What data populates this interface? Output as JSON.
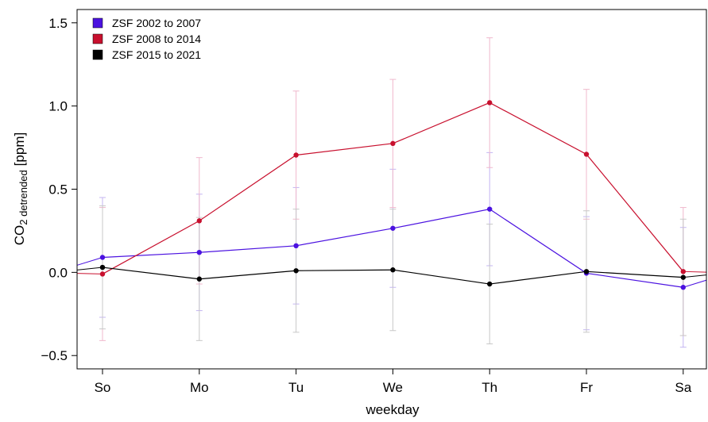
{
  "chart_data": {
    "type": "line",
    "xlabel": "weekday",
    "ylabel": {
      "main": "CO",
      "sub": "2 detrended",
      "unit": "[ppm]"
    },
    "categories": [
      "So",
      "Mo",
      "Tu",
      "We",
      "Th",
      "Fr",
      "Sa"
    ],
    "ylim": [
      -0.58,
      1.58
    ],
    "yticks": [
      {
        "value": -0.5,
        "label": "−0.5"
      },
      {
        "value": 0,
        "label": "0.0"
      },
      0.5,
      {
        "value": 1,
        "label": "1.0"
      },
      1.5
    ],
    "legend": "top-left",
    "series": [
      {
        "name": "ZSF 2002 to 2007",
        "color": "#4b12e0",
        "errcolor": "#c3b4f2",
        "values": [
          0.09,
          0.12,
          0.16,
          0.265,
          0.38,
          -0.005,
          -0.09
        ],
        "errors": [
          0.36,
          0.35,
          0.35,
          0.355,
          0.34,
          0.34,
          0.36
        ]
      },
      {
        "name": "ZSF 2008 to 2014",
        "color": "#c8102e",
        "errcolor": "#f0b8cc",
        "values": [
          -0.01,
          0.31,
          0.705,
          0.775,
          1.02,
          0.71,
          0.005
        ],
        "errors": [
          0.4,
          0.38,
          0.385,
          0.385,
          0.39,
          0.39,
          0.385
        ]
      },
      {
        "name": "ZSF 2015 to 2021",
        "color": "#000000",
        "errcolor": "#c8c8c8",
        "values": [
          0.03,
          -0.04,
          0.01,
          0.015,
          -0.07,
          0.005,
          -0.03
        ],
        "errors": [
          0.37,
          0.37,
          0.37,
          0.365,
          0.36,
          0.365,
          0.35
        ]
      }
    ]
  }
}
